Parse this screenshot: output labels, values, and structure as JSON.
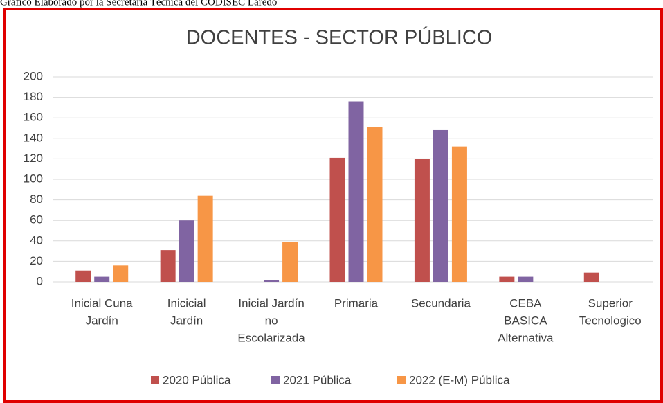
{
  "caption": "Gráfico Elaborado por la Secretaría Técnica del CODISEC Laredo",
  "chart_data": {
    "type": "bar",
    "title": "DOCENTES  - SECTOR PÚBLICO",
    "categories": [
      [
        "Inicial Cuna",
        "Jardín"
      ],
      [
        "Inicicial",
        "Jardín"
      ],
      [
        "Inicial Jardín",
        "no",
        "Escolarizada"
      ],
      [
        "Primaria"
      ],
      [
        "Secundaria"
      ],
      [
        "CEBA",
        "BASICA",
        "Alternativa"
      ],
      [
        "Superior",
        "Tecnologico"
      ]
    ],
    "series": [
      {
        "name": "2020 Pública",
        "color": "#c0504d",
        "values": [
          11,
          31,
          0,
          121,
          120,
          5,
          9
        ]
      },
      {
        "name": "2021 Pública",
        "color": "#8064a2",
        "values": [
          5,
          60,
          2,
          176,
          148,
          5,
          0
        ]
      },
      {
        "name": "2022 (E-M) Pública",
        "color": "#f79646",
        "values": [
          16,
          84,
          39,
          151,
          132,
          0,
          0
        ]
      }
    ],
    "ylim": [
      0,
      200
    ],
    "yticks": [
      0,
      20,
      40,
      60,
      80,
      100,
      120,
      140,
      160,
      180,
      200
    ],
    "grid": true,
    "legend": "bottom"
  }
}
